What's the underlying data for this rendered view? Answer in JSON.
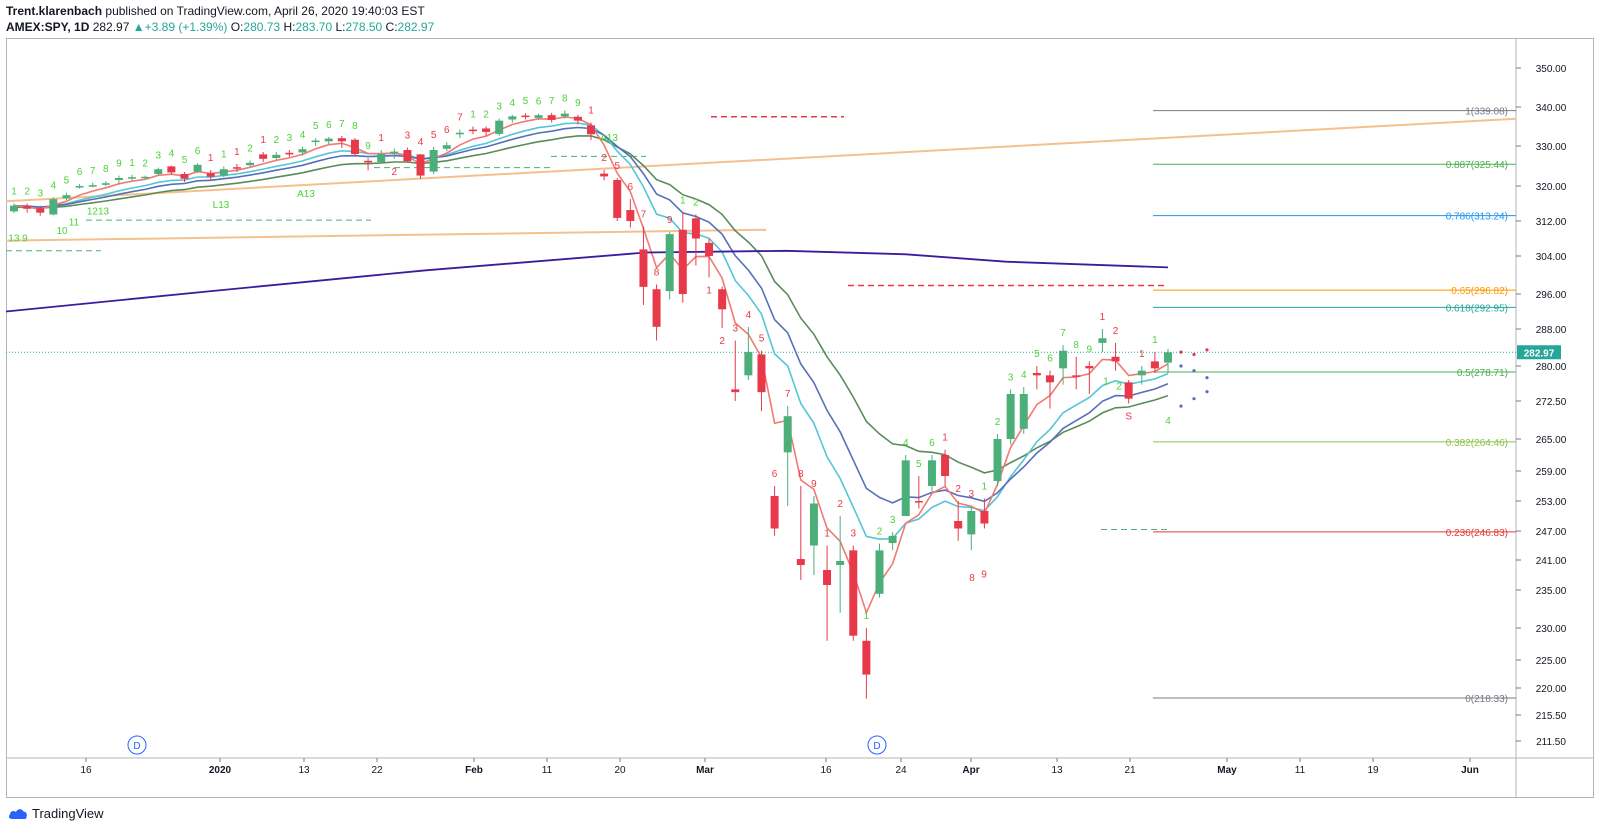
{
  "header": {
    "author": "Trent.klarenbach",
    "published_text": "published on TradingView.com, April 26, 2020 19:40:03 EST",
    "symbol": "AMEX:SPY, 1D",
    "last": "282.97",
    "change": "+3.89 (+1.39%)",
    "o_label": "O:",
    "o_value": "280.73",
    "h_label": "H:",
    "h_value": "283.70",
    "l_label": "L:",
    "l_value": "278.50",
    "c_label": "C:",
    "c_value": "282.97"
  },
  "footer": {
    "brand": "TradingView"
  },
  "colors": {
    "up": "#4caf7a",
    "down": "#e8394a",
    "ema_fast": "#f07b73",
    "ema_blue": "#5470b8",
    "ema_cyan": "#56c5d8",
    "ema_green": "#5a8c5a",
    "ma200": "#3d1a9e",
    "trend": "#f5c08e"
  },
  "chart_data": {
    "type": "candlestick",
    "symbol": "AMEX:SPY",
    "interval": "1D",
    "price_axis": {
      "ticks": [
        "350.00",
        "340.00",
        "330.00",
        "320.00",
        "312.00",
        "304.00",
        "296.00",
        "288.00",
        "280.00",
        "272.50",
        "265.00",
        "259.00",
        "253.00",
        "247.00",
        "241.00",
        "235.00",
        "230.00",
        "225.00",
        "220.00",
        "215.50",
        "211.50"
      ],
      "last_price_label": "282.97"
    },
    "time_axis": {
      "ticks": [
        "16",
        "2020",
        "13",
        "22",
        "Feb",
        "11",
        "20",
        "Mar",
        "16",
        "24",
        "Apr",
        "13",
        "21",
        "May",
        "11",
        "19",
        "Jun"
      ]
    },
    "candles": [
      {
        "o": 314.2,
        "c": 315.5,
        "h": 316.0,
        "l": 313.8
      },
      {
        "o": 315.4,
        "c": 314.8,
        "h": 316.0,
        "l": 313.9
      },
      {
        "o": 314.9,
        "c": 313.9,
        "h": 315.5,
        "l": 313.2
      },
      {
        "o": 313.5,
        "c": 317.0,
        "h": 317.4,
        "l": 313.3
      },
      {
        "o": 317.2,
        "c": 317.9,
        "h": 318.5,
        "l": 316.8
      },
      {
        "o": 319.8,
        "c": 320.0,
        "h": 320.5,
        "l": 319.4
      },
      {
        "o": 320.1,
        "c": 320.2,
        "h": 320.8,
        "l": 319.7
      },
      {
        "o": 320.3,
        "c": 320.7,
        "h": 321.2,
        "l": 320.0
      },
      {
        "o": 321.5,
        "c": 322.0,
        "h": 322.6,
        "l": 320.5
      },
      {
        "o": 322.0,
        "c": 322.2,
        "h": 322.8,
        "l": 321.4
      },
      {
        "o": 322.1,
        "c": 322.3,
        "h": 322.6,
        "l": 321.8
      },
      {
        "o": 323.0,
        "c": 324.2,
        "h": 324.6,
        "l": 322.7
      },
      {
        "o": 324.9,
        "c": 323.4,
        "h": 325.1,
        "l": 322.9
      },
      {
        "o": 323.0,
        "c": 321.8,
        "h": 323.5,
        "l": 321.0
      },
      {
        "o": 323.6,
        "c": 325.3,
        "h": 325.7,
        "l": 323.2
      },
      {
        "o": 323.2,
        "c": 322.3,
        "h": 324.0,
        "l": 321.5
      },
      {
        "o": 322.6,
        "c": 324.2,
        "h": 324.9,
        "l": 322.2
      },
      {
        "o": 324.7,
        "c": 324.5,
        "h": 325.5,
        "l": 323.5
      },
      {
        "o": 325.2,
        "c": 325.8,
        "h": 326.4,
        "l": 324.8
      },
      {
        "o": 327.9,
        "c": 326.8,
        "h": 328.5,
        "l": 326.0
      },
      {
        "o": 327.0,
        "c": 327.8,
        "h": 328.5,
        "l": 326.6
      },
      {
        "o": 328.3,
        "c": 327.9,
        "h": 329.0,
        "l": 327.3
      },
      {
        "o": 328.4,
        "c": 329.2,
        "h": 329.8,
        "l": 327.6
      },
      {
        "o": 331.0,
        "c": 331.4,
        "h": 332.0,
        "l": 330.0
      },
      {
        "o": 331.2,
        "c": 331.9,
        "h": 332.3,
        "l": 330.5
      },
      {
        "o": 332.0,
        "c": 331.2,
        "h": 332.6,
        "l": 329.5
      },
      {
        "o": 331.6,
        "c": 328.0,
        "h": 332.0,
        "l": 327.4
      },
      {
        "o": 326.3,
        "c": 325.9,
        "h": 327.0,
        "l": 323.9
      },
      {
        "o": 326.0,
        "c": 328.0,
        "h": 329.0,
        "l": 325.6
      },
      {
        "o": 328.5,
        "c": 328.6,
        "h": 329.4,
        "l": 326.8
      },
      {
        "o": 329.0,
        "c": 326.2,
        "h": 329.6,
        "l": 325.9
      },
      {
        "o": 327.9,
        "c": 322.6,
        "h": 328.0,
        "l": 321.8
      },
      {
        "o": 323.6,
        "c": 329.0,
        "h": 329.8,
        "l": 323.0
      },
      {
        "o": 329.3,
        "c": 330.2,
        "h": 331.0,
        "l": 328.7
      },
      {
        "o": 333.0,
        "c": 333.4,
        "h": 334.2,
        "l": 332.0
      },
      {
        "o": 334.2,
        "c": 334.0,
        "h": 335.0,
        "l": 333.0
      },
      {
        "o": 334.5,
        "c": 333.6,
        "h": 335.0,
        "l": 332.6
      },
      {
        "o": 333.1,
        "c": 336.5,
        "h": 337.0,
        "l": 332.6
      },
      {
        "o": 336.8,
        "c": 337.6,
        "h": 338.0,
        "l": 336.0
      },
      {
        "o": 337.8,
        "c": 337.6,
        "h": 338.4,
        "l": 336.8
      },
      {
        "o": 337.2,
        "c": 337.9,
        "h": 338.3,
        "l": 336.7
      },
      {
        "o": 337.9,
        "c": 336.7,
        "h": 338.5,
        "l": 336.0
      },
      {
        "o": 337.6,
        "c": 338.3,
        "h": 339.1,
        "l": 337.0
      },
      {
        "o": 337.5,
        "c": 336.5,
        "h": 338.0,
        "l": 335.5
      },
      {
        "o": 335.3,
        "c": 333.0,
        "h": 336.0,
        "l": 331.5
      },
      {
        "o": 323.1,
        "c": 322.4,
        "h": 324.0,
        "l": 321.4
      },
      {
        "o": 321.5,
        "c": 312.7,
        "h": 322.0,
        "l": 312.0
      },
      {
        "o": 314.5,
        "c": 312.0,
        "h": 317.0,
        "l": 310.5
      },
      {
        "o": 305.5,
        "c": 297.5,
        "h": 310.8,
        "l": 293.5
      },
      {
        "o": 297.0,
        "c": 288.5,
        "h": 298.0,
        "l": 285.5
      },
      {
        "o": 296.6,
        "c": 309.0,
        "h": 309.5,
        "l": 294.8
      },
      {
        "o": 310.0,
        "c": 296.0,
        "h": 314.0,
        "l": 294.0
      },
      {
        "o": 312.6,
        "c": 308.0,
        "h": 313.5,
        "l": 302.0
      },
      {
        "o": 307.0,
        "c": 304.0,
        "h": 308.0,
        "l": 299.5
      },
      {
        "o": 297.0,
        "c": 292.5,
        "h": 297.6,
        "l": 288.2
      },
      {
        "o": 275.0,
        "c": 274.4,
        "h": 285.5,
        "l": 272.5
      },
      {
        "o": 278.0,
        "c": 283.0,
        "h": 288.5,
        "l": 277.0
      },
      {
        "o": 282.5,
        "c": 274.4,
        "h": 283.3,
        "l": 270.5
      },
      {
        "o": 254.0,
        "c": 247.5,
        "h": 256.0,
        "l": 246.0
      },
      {
        "o": 262.5,
        "c": 269.5,
        "h": 271.5,
        "l": 252.0
      },
      {
        "o": 241.2,
        "c": 240.0,
        "h": 256.0,
        "l": 237.0
      },
      {
        "o": 244.0,
        "c": 252.5,
        "h": 254.0,
        "l": 238.0
      },
      {
        "o": 239.0,
        "c": 236.0,
        "h": 244.0,
        "l": 228.0
      },
      {
        "o": 240.0,
        "c": 240.8,
        "h": 250.0,
        "l": 232.0
      },
      {
        "o": 243.0,
        "c": 228.8,
        "h": 244.0,
        "l": 228.0
      },
      {
        "o": 228.0,
        "c": 222.4,
        "h": 230.0,
        "l": 218.2
      },
      {
        "o": 234.5,
        "c": 243.0,
        "h": 244.4,
        "l": 234.0
      },
      {
        "o": 244.5,
        "c": 246.0,
        "h": 246.8,
        "l": 243.0
      },
      {
        "o": 250.0,
        "c": 261.0,
        "h": 262.0,
        "l": 250.0
      },
      {
        "o": 253.0,
        "c": 252.8,
        "h": 258.0,
        "l": 251.5
      },
      {
        "o": 256.0,
        "c": 261.0,
        "h": 262.0,
        "l": 255.0
      },
      {
        "o": 262.0,
        "c": 258.0,
        "h": 263.0,
        "l": 256.0
      },
      {
        "o": 249.0,
        "c": 247.5,
        "h": 253.0,
        "l": 245.0
      },
      {
        "o": 246.3,
        "c": 251.0,
        "h": 252.0,
        "l": 243.0
      },
      {
        "o": 251.0,
        "c": 248.5,
        "h": 253.5,
        "l": 247.5
      },
      {
        "o": 257.0,
        "c": 265.0,
        "h": 266.0,
        "l": 256.0
      },
      {
        "o": 265.0,
        "c": 274.0,
        "h": 275.0,
        "l": 264.0
      },
      {
        "o": 267.0,
        "c": 274.0,
        "h": 275.5,
        "l": 266.0
      },
      {
        "o": 278.5,
        "c": 278.0,
        "h": 280.0,
        "l": 275.0
      },
      {
        "o": 278.0,
        "c": 276.5,
        "h": 279.0,
        "l": 271.0
      },
      {
        "o": 279.5,
        "c": 283.3,
        "h": 284.5,
        "l": 276.0
      },
      {
        "o": 278.0,
        "c": 277.8,
        "h": 282.0,
        "l": 275.0
      },
      {
        "o": 280.0,
        "c": 279.5,
        "h": 281.0,
        "l": 274.0
      },
      {
        "o": 285.0,
        "c": 286.0,
        "h": 288.0,
        "l": 283.0
      },
      {
        "o": 282.0,
        "c": 281.0,
        "h": 285.0,
        "l": 279.0
      },
      {
        "o": 276.5,
        "c": 273.0,
        "h": 277.0,
        "l": 272.0
      },
      {
        "o": 278.0,
        "c": 279.0,
        "h": 280.0,
        "l": 276.0
      },
      {
        "o": 281.0,
        "c": 279.5,
        "h": 283.0,
        "l": 278.5
      },
      {
        "o": 280.73,
        "c": 282.97,
        "h": 283.7,
        "l": 278.5
      }
    ],
    "fibonacci": [
      {
        "ratio": "1",
        "price": "339.08",
        "label": "1(339.08)",
        "color": "#787b86"
      },
      {
        "ratio": "0.887",
        "price": "325.44",
        "label": "0.887(325.44)",
        "color": "#4caf50"
      },
      {
        "ratio": "0.786",
        "price": "313.24",
        "label": "0.786(313.24)",
        "color": "#2196f3"
      },
      {
        "ratio": "0.65",
        "price": "296.82",
        "label": "0.65(296.82)",
        "color": "#ff9800"
      },
      {
        "ratio": "0.618",
        "price": "292.95",
        "label": "0.618(292.95)",
        "color": "#26a69a"
      },
      {
        "ratio": "0.5",
        "price": "278.71",
        "label": "0.5(278.71)",
        "color": "#4caf50"
      },
      {
        "ratio": "0.382",
        "price": "264.46",
        "label": "0.382(264.46)",
        "color": "#8bc34a"
      },
      {
        "ratio": "0.236",
        "price": "246.83",
        "label": "0.236(246.83)",
        "color": "#e53935"
      },
      {
        "ratio": "0",
        "price": "218.33",
        "label": "0(218.33)",
        "color": "#787b86"
      }
    ],
    "markers": [
      {
        "i": 0,
        "t": "1",
        "c": "g",
        "pos": "above"
      },
      {
        "i": 1,
        "t": "2",
        "c": "g",
        "pos": "above"
      },
      {
        "i": 2,
        "t": "3",
        "c": "g",
        "pos": "above"
      },
      {
        "i": 3,
        "t": "4",
        "c": "g",
        "pos": "above"
      },
      {
        "i": 4,
        "t": "5",
        "c": "g",
        "pos": "above"
      },
      {
        "i": 5,
        "t": "6",
        "c": "g",
        "pos": "above"
      },
      {
        "i": 6,
        "t": "7",
        "c": "g",
        "pos": "above"
      },
      {
        "i": 7,
        "t": "8",
        "c": "g",
        "pos": "above"
      },
      {
        "i": 8,
        "t": "9",
        "c": "g",
        "pos": "above"
      },
      {
        "i": 9,
        "t": "1",
        "c": "g",
        "pos": "above"
      },
      {
        "i": 10,
        "t": "2",
        "c": "g",
        "pos": "above"
      },
      {
        "i": 11,
        "t": "3",
        "c": "g",
        "pos": "above"
      },
      {
        "i": 12,
        "t": "4",
        "c": "g",
        "pos": "above"
      },
      {
        "i": 13,
        "t": "5",
        "c": "g",
        "pos": "above"
      },
      {
        "i": 14,
        "t": "6",
        "c": "g",
        "pos": "above"
      },
      {
        "i": 15,
        "t": "1",
        "c": "r",
        "pos": "above"
      },
      {
        "i": 16,
        "t": "1",
        "c": "g",
        "pos": "above"
      },
      {
        "i": 17,
        "t": "1",
        "c": "r",
        "pos": "above"
      },
      {
        "i": 18,
        "t": "2",
        "c": "g",
        "pos": "above"
      },
      {
        "i": 19,
        "t": "1",
        "c": "r",
        "pos": "above"
      },
      {
        "i": 20,
        "t": "2",
        "c": "g",
        "pos": "above"
      },
      {
        "i": 21,
        "t": "3",
        "c": "g",
        "pos": "above"
      },
      {
        "i": 22,
        "t": "4",
        "c": "g",
        "pos": "above"
      },
      {
        "i": 23,
        "t": "5",
        "c": "g",
        "pos": "above"
      },
      {
        "i": 24,
        "t": "6",
        "c": "g",
        "pos": "above"
      },
      {
        "i": 25,
        "t": "7",
        "c": "g",
        "pos": "above"
      },
      {
        "i": 26,
        "t": "8",
        "c": "g",
        "pos": "above"
      },
      {
        "i": 27,
        "t": "9",
        "c": "g",
        "pos": "above"
      },
      {
        "i": 28,
        "t": "1",
        "c": "r",
        "pos": "above"
      },
      {
        "i": 29,
        "t": "2",
        "c": "r",
        "pos": "below"
      },
      {
        "i": 30,
        "t": "3",
        "c": "r",
        "pos": "above"
      },
      {
        "i": 31,
        "t": "4",
        "c": "r",
        "pos": "above"
      },
      {
        "i": 32,
        "t": "5",
        "c": "r",
        "pos": "above"
      },
      {
        "i": 33,
        "t": "6",
        "c": "r",
        "pos": "above"
      },
      {
        "i": 34,
        "t": "7",
        "c": "r",
        "pos": "above"
      },
      {
        "i": 35,
        "t": "1",
        "c": "g",
        "pos": "above"
      },
      {
        "i": 36,
        "t": "2",
        "c": "g",
        "pos": "above"
      },
      {
        "i": 37,
        "t": "3",
        "c": "g",
        "pos": "above"
      },
      {
        "i": 38,
        "t": "4",
        "c": "g",
        "pos": "above"
      },
      {
        "i": 39,
        "t": "5",
        "c": "g",
        "pos": "above"
      },
      {
        "i": 40,
        "t": "6",
        "c": "g",
        "pos": "above"
      },
      {
        "i": 41,
        "t": "7",
        "c": "g",
        "pos": "above"
      },
      {
        "i": 42,
        "t": "8",
        "c": "g",
        "pos": "above"
      },
      {
        "i": 43,
        "t": "9",
        "c": "g",
        "pos": "above"
      },
      {
        "i": 44,
        "t": "1",
        "c": "r",
        "pos": "above"
      },
      {
        "i": 45,
        "t": "2",
        "c": "r",
        "pos": "above"
      },
      {
        "i": 46,
        "t": "5",
        "c": "r",
        "pos": "above"
      },
      {
        "i": 47,
        "t": "6",
        "c": "r",
        "pos": "above"
      },
      {
        "i": 48,
        "t": "7",
        "c": "r",
        "pos": "above"
      },
      {
        "i": 49,
        "t": "8",
        "c": "r",
        "pos": "above"
      },
      {
        "i": 50,
        "t": "9",
        "c": "r",
        "pos": "above"
      },
      {
        "i": 51,
        "t": "1",
        "c": "g",
        "pos": "above"
      },
      {
        "i": 52,
        "t": "2",
        "c": "g",
        "pos": "above"
      },
      {
        "i": 53,
        "t": "1",
        "c": "r",
        "pos": "below"
      },
      {
        "i": 54,
        "t": "2",
        "c": "r",
        "pos": "below"
      },
      {
        "i": 55,
        "t": "3",
        "c": "r",
        "pos": "above"
      },
      {
        "i": 56,
        "t": "4",
        "c": "r",
        "pos": "above"
      },
      {
        "i": 57,
        "t": "5",
        "c": "r",
        "pos": "above"
      },
      {
        "i": 58,
        "t": "6",
        "c": "r",
        "pos": "above"
      },
      {
        "i": 59,
        "t": "7",
        "c": "r",
        "pos": "above"
      },
      {
        "i": 60,
        "t": "8",
        "c": "r",
        "pos": "above"
      },
      {
        "i": 61,
        "t": "9",
        "c": "r",
        "pos": "above"
      },
      {
        "i": 62,
        "t": "1",
        "c": "r",
        "pos": "above"
      },
      {
        "i": 63,
        "t": "2",
        "c": "r",
        "pos": "above"
      },
      {
        "i": 64,
        "t": "3",
        "c": "r",
        "pos": "above"
      },
      {
        "i": 65,
        "t": "1",
        "c": "g",
        "pos": "above"
      },
      {
        "i": 66,
        "t": "2",
        "c": "g",
        "pos": "above"
      },
      {
        "i": 67,
        "t": "3",
        "c": "g",
        "pos": "above"
      },
      {
        "i": 68,
        "t": "4",
        "c": "g",
        "pos": "above"
      },
      {
        "i": 69,
        "t": "5",
        "c": "g",
        "pos": "above"
      },
      {
        "i": 70,
        "t": "6",
        "c": "g",
        "pos": "above"
      },
      {
        "i": 71,
        "t": "1",
        "c": "r",
        "pos": "above"
      },
      {
        "i": 72,
        "t": "2",
        "c": "r",
        "pos": "above"
      },
      {
        "i": 73,
        "t": "3",
        "c": "r",
        "pos": "above"
      },
      {
        "i": 74,
        "t": "1",
        "c": "g",
        "pos": "above"
      },
      {
        "i": 75,
        "t": "2",
        "c": "g",
        "pos": "above"
      },
      {
        "i": 76,
        "t": "3",
        "c": "g",
        "pos": "above"
      },
      {
        "i": 77,
        "t": "4",
        "c": "g",
        "pos": "above"
      },
      {
        "i": 78,
        "t": "5",
        "c": "g",
        "pos": "above"
      },
      {
        "i": 79,
        "t": "6",
        "c": "g",
        "pos": "above"
      },
      {
        "i": 80,
        "t": "7",
        "c": "g",
        "pos": "above"
      },
      {
        "i": 81,
        "t": "8",
        "c": "g",
        "pos": "above"
      },
      {
        "i": 82,
        "t": "9",
        "c": "g",
        "pos": "above"
      },
      {
        "i": 83,
        "t": "1",
        "c": "r",
        "pos": "above"
      },
      {
        "i": 84,
        "t": "2",
        "c": "r",
        "pos": "above"
      },
      {
        "i": 85,
        "t": "S",
        "c": "r",
        "pos": "below"
      },
      {
        "i": 86,
        "t": "1",
        "c": "r",
        "pos": "above"
      },
      {
        "i": 87,
        "t": "1",
        "c": "g",
        "pos": "above"
      }
    ],
    "extra_labels": [
      "A13",
      "L13",
      "1213",
      "13 9",
      "10",
      "11",
      "A13",
      "8",
      "9",
      "D",
      "D",
      "4",
      "2",
      "1"
    ]
  }
}
